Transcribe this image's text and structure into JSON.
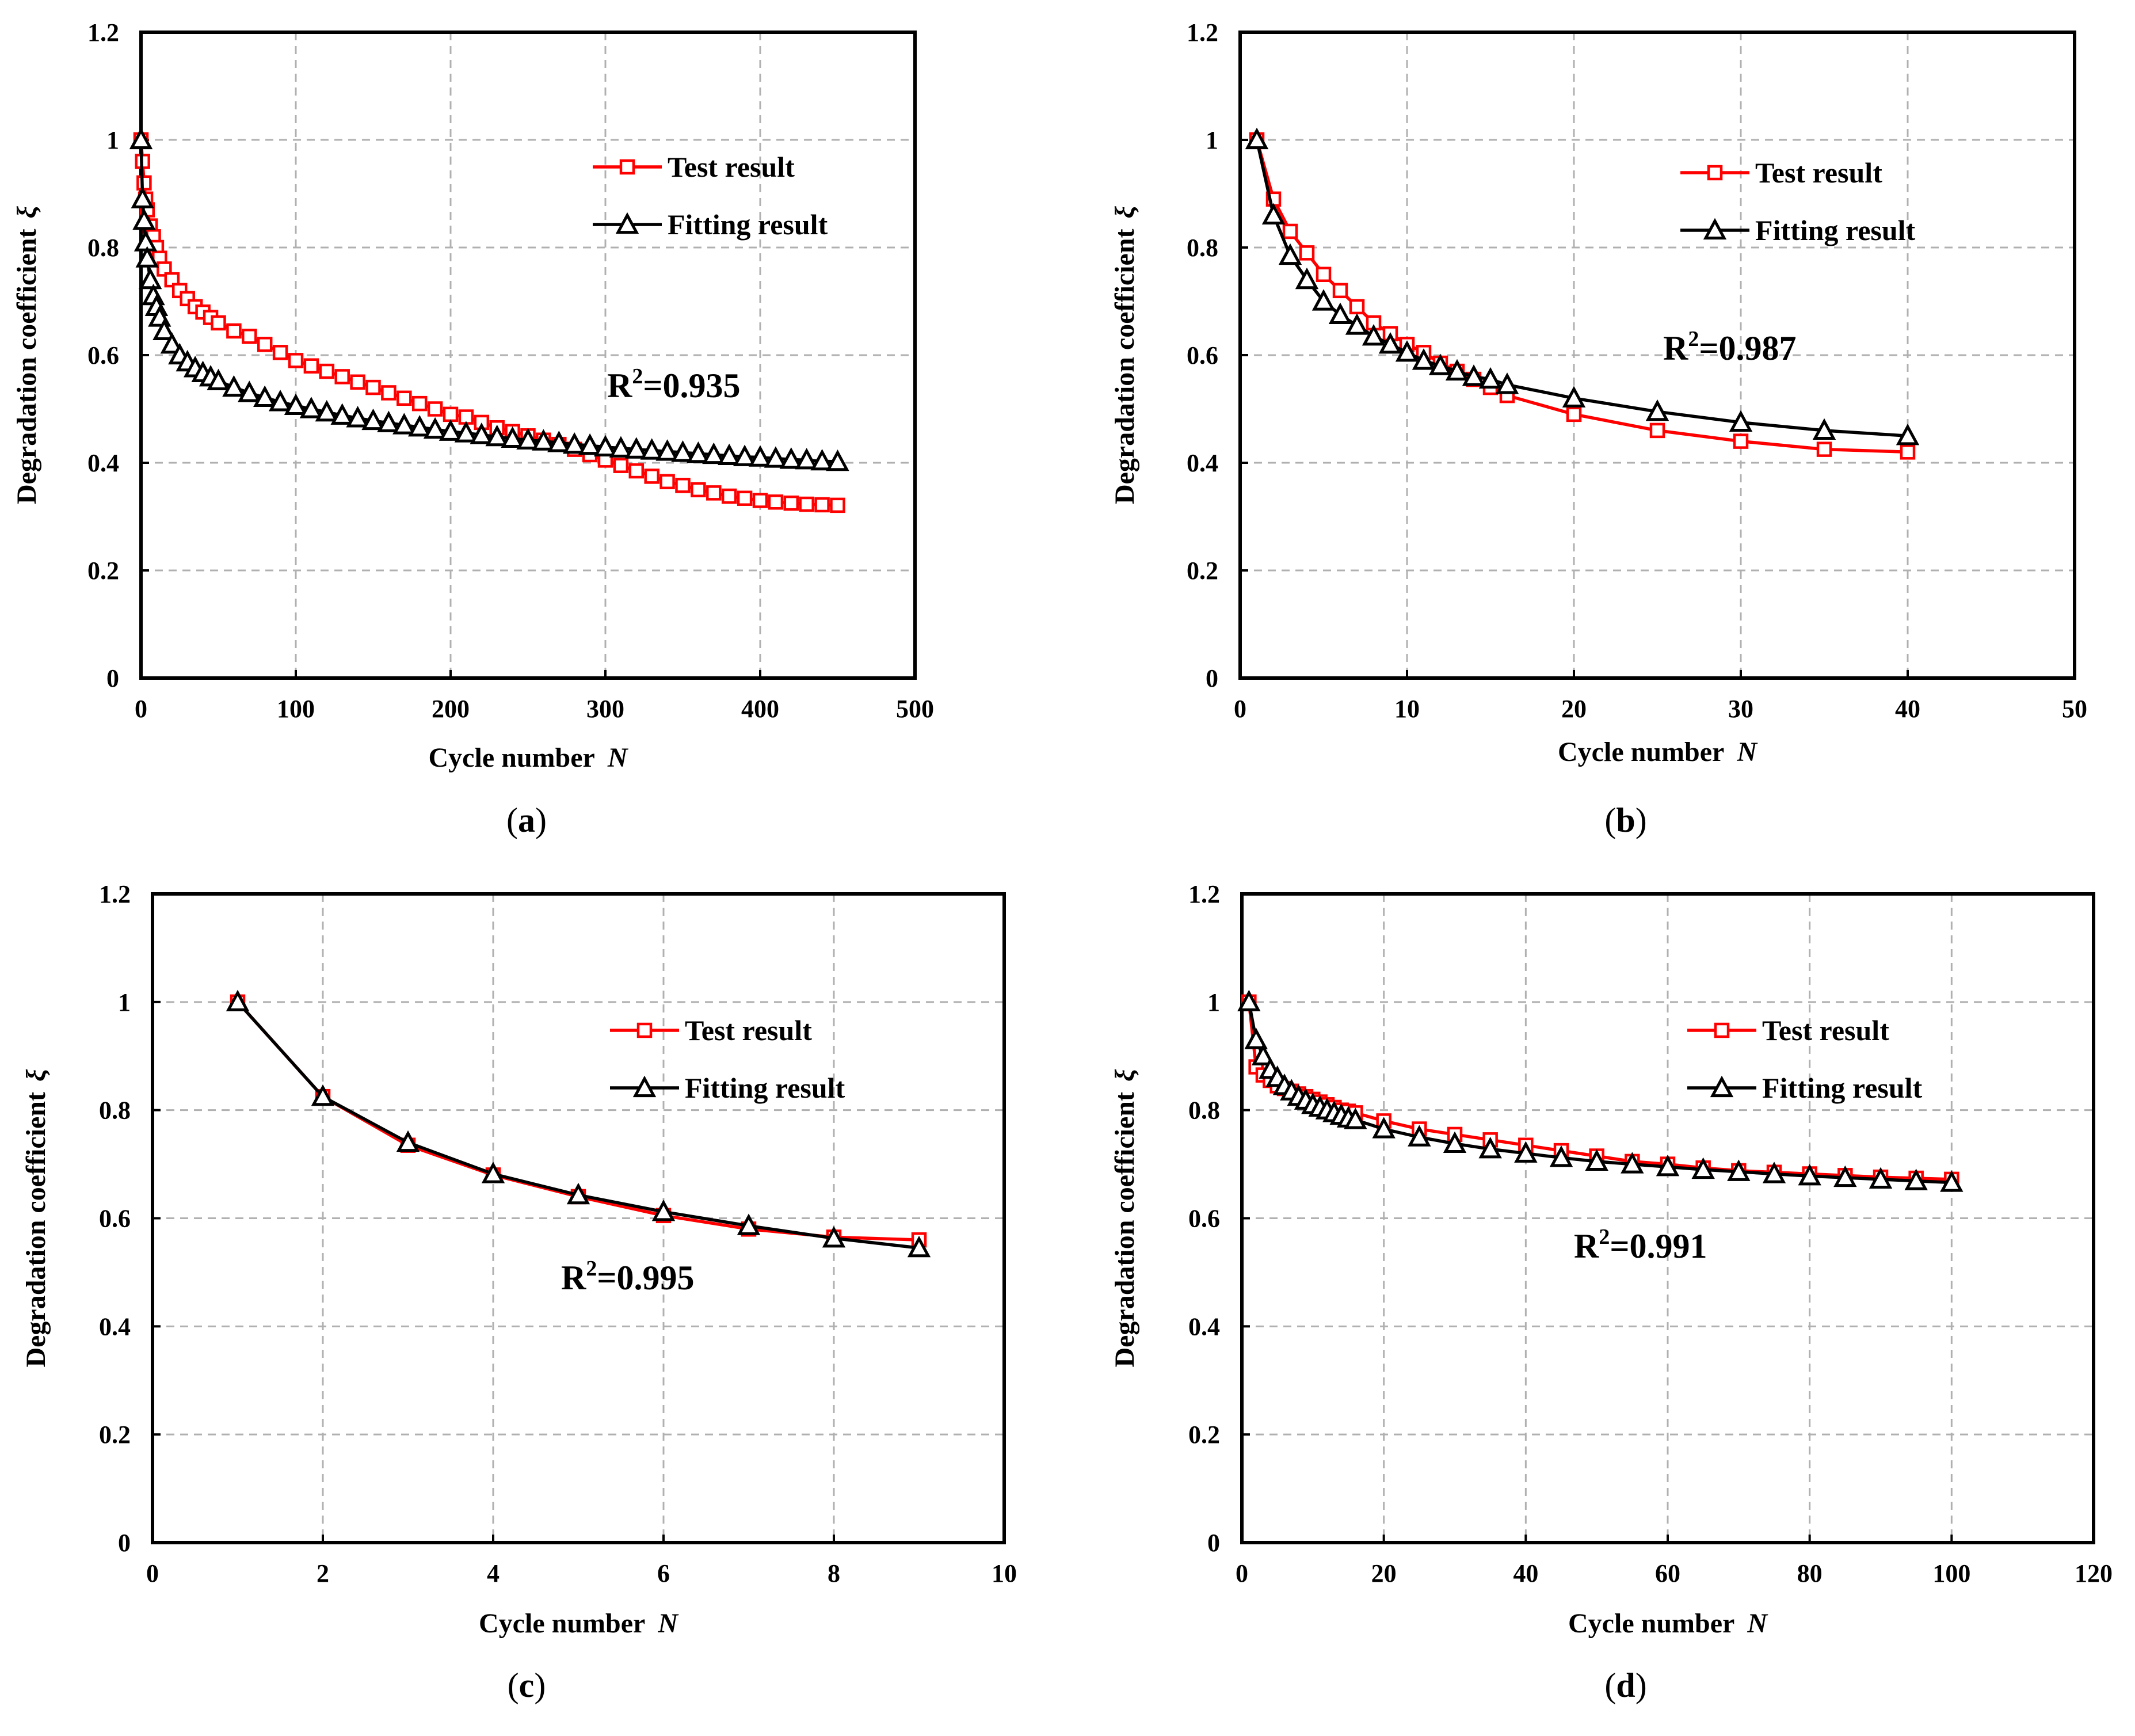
{
  "colors": {
    "test": "#ff0000",
    "fit": "#000000",
    "grid": "#b0b0b0"
  },
  "chart_data": [
    {
      "type": "line",
      "panel_label": "a",
      "xlabel": "Cycle number",
      "xvar": "N",
      "ylabel": "Degradation coefficient",
      "yvar": "ξ",
      "xlim": [
        0,
        500
      ],
      "ylim": [
        0,
        1.2
      ],
      "xticks": [
        "0",
        "100",
        "200",
        "300",
        "400",
        "500"
      ],
      "yticks": [
        "0",
        "0.2",
        "0.4",
        "0.6",
        "0.8",
        "1",
        "1.2"
      ],
      "grid": true,
      "legend": "top-right",
      "r2_label": "R",
      "r2_sup": "2",
      "r2_value": "=0.935",
      "series": [
        {
          "name": "Test result",
          "color": "#ff0000",
          "marker": "square",
          "x": [
            0,
            1,
            2,
            3,
            4,
            6,
            8,
            10,
            12,
            15,
            20,
            25,
            30,
            35,
            40,
            45,
            50,
            60,
            70,
            80,
            90,
            100,
            110,
            120,
            130,
            140,
            150,
            160,
            170,
            180,
            190,
            200,
            210,
            220,
            230,
            240,
            250,
            260,
            270,
            280,
            290,
            300,
            310,
            320,
            330,
            340,
            350,
            360,
            370,
            380,
            390,
            400,
            410,
            420,
            430,
            440,
            450
          ],
          "y": [
            1.0,
            0.96,
            0.92,
            0.89,
            0.87,
            0.84,
            0.82,
            0.8,
            0.78,
            0.76,
            0.74,
            0.72,
            0.705,
            0.69,
            0.68,
            0.67,
            0.66,
            0.645,
            0.635,
            0.62,
            0.605,
            0.59,
            0.58,
            0.57,
            0.56,
            0.55,
            0.54,
            0.53,
            0.52,
            0.51,
            0.5,
            0.49,
            0.485,
            0.475,
            0.465,
            0.458,
            0.45,
            0.442,
            0.434,
            0.425,
            0.415,
            0.405,
            0.395,
            0.385,
            0.375,
            0.365,
            0.358,
            0.35,
            0.344,
            0.338,
            0.334,
            0.33,
            0.327,
            0.325,
            0.323,
            0.322,
            0.321
          ]
        },
        {
          "name": "Fitting result",
          "color": "#000000",
          "marker": "triangle",
          "x": [
            0,
            1,
            2,
            3,
            4,
            6,
            8,
            10,
            12,
            15,
            20,
            25,
            30,
            35,
            40,
            45,
            50,
            60,
            70,
            80,
            90,
            100,
            110,
            120,
            130,
            140,
            150,
            160,
            170,
            180,
            190,
            200,
            210,
            220,
            230,
            240,
            250,
            260,
            270,
            280,
            290,
            300,
            310,
            320,
            330,
            340,
            350,
            360,
            370,
            380,
            390,
            400,
            410,
            420,
            430,
            440,
            450
          ],
          "y": [
            1.0,
            0.89,
            0.85,
            0.81,
            0.78,
            0.74,
            0.71,
            0.69,
            0.67,
            0.645,
            0.62,
            0.6,
            0.587,
            0.576,
            0.567,
            0.559,
            0.552,
            0.54,
            0.53,
            0.521,
            0.513,
            0.506,
            0.5,
            0.494,
            0.488,
            0.483,
            0.478,
            0.474,
            0.47,
            0.466,
            0.462,
            0.458,
            0.455,
            0.452,
            0.448,
            0.445,
            0.442,
            0.44,
            0.437,
            0.434,
            0.432,
            0.429,
            0.427,
            0.425,
            0.423,
            0.421,
            0.419,
            0.417,
            0.415,
            0.413,
            0.411,
            0.41,
            0.408,
            0.406,
            0.405,
            0.403,
            0.402
          ]
        }
      ]
    },
    {
      "type": "line",
      "panel_label": "b",
      "xlabel": "Cycle number",
      "xvar": "N",
      "ylabel": "Degradation coefficient",
      "yvar": "ξ",
      "xlim": [
        0,
        50
      ],
      "ylim": [
        0,
        1.2
      ],
      "xticks": [
        "0",
        "10",
        "20",
        "30",
        "40",
        "50"
      ],
      "yticks": [
        "0",
        "0.2",
        "0.4",
        "0.6",
        "0.8",
        "1",
        "1.2"
      ],
      "grid": true,
      "legend": "top-right",
      "r2_label": "R",
      "r2_sup": "2",
      "r2_value": "=0.987",
      "series": [
        {
          "name": "Test result",
          "color": "#ff0000",
          "marker": "square",
          "x": [
            1,
            2,
            3,
            4,
            5,
            6,
            7,
            8,
            9,
            10,
            11,
            12,
            13,
            14,
            15,
            16,
            20,
            25,
            30,
            35,
            40
          ],
          "y": [
            1.0,
            0.89,
            0.83,
            0.79,
            0.75,
            0.72,
            0.69,
            0.66,
            0.64,
            0.62,
            0.605,
            0.585,
            0.57,
            0.555,
            0.54,
            0.525,
            0.49,
            0.46,
            0.44,
            0.425,
            0.42
          ]
        },
        {
          "name": "Fitting result",
          "color": "#000000",
          "marker": "triangle",
          "x": [
            1,
            2,
            3,
            4,
            5,
            6,
            7,
            8,
            9,
            10,
            11,
            12,
            13,
            14,
            15,
            16,
            20,
            25,
            30,
            35,
            40
          ],
          "y": [
            1.0,
            0.86,
            0.785,
            0.74,
            0.7,
            0.675,
            0.655,
            0.635,
            0.62,
            0.605,
            0.59,
            0.58,
            0.57,
            0.56,
            0.555,
            0.545,
            0.52,
            0.495,
            0.475,
            0.46,
            0.45
          ]
        }
      ]
    },
    {
      "type": "line",
      "panel_label": "c",
      "xlabel": "Cycle number",
      "xvar": "N",
      "ylabel": "Degradation coefficient",
      "yvar": "ξ",
      "xlim": [
        0,
        10
      ],
      "ylim": [
        0,
        1.2
      ],
      "xticks": [
        "0",
        "2",
        "4",
        "6",
        "8",
        "10"
      ],
      "yticks": [
        "0",
        "0.2",
        "0.4",
        "0.6",
        "0.8",
        "1",
        "1.2"
      ],
      "grid": true,
      "legend": "top-right",
      "r2_label": "R",
      "r2_sup": "2",
      "r2_value": "=0.995",
      "series": [
        {
          "name": "Test result",
          "color": "#ff0000",
          "marker": "square",
          "x": [
            1,
            2,
            3,
            4,
            5,
            6,
            7,
            8,
            9
          ],
          "y": [
            1.0,
            0.825,
            0.735,
            0.68,
            0.64,
            0.605,
            0.58,
            0.565,
            0.56
          ]
        },
        {
          "name": "Fitting result",
          "color": "#000000",
          "marker": "triangle",
          "x": [
            1,
            2,
            3,
            4,
            5,
            6,
            7,
            8,
            9
          ],
          "y": [
            1.0,
            0.825,
            0.74,
            0.682,
            0.643,
            0.612,
            0.586,
            0.563,
            0.545
          ]
        }
      ]
    },
    {
      "type": "line",
      "panel_label": "d",
      "xlabel": "Cycle number",
      "xvar": "N",
      "ylabel": "Degradation coefficient",
      "yvar": "ξ",
      "xlim": [
        0,
        120
      ],
      "ylim": [
        0,
        1.2
      ],
      "xticks": [
        "0",
        "20",
        "40",
        "60",
        "80",
        "100",
        "120"
      ],
      "yticks": [
        "0",
        "0.2",
        "0.4",
        "0.6",
        "0.8",
        "1",
        "1.2"
      ],
      "grid": true,
      "legend": "top-right",
      "r2_label": "R",
      "r2_sup": "2",
      "r2_value": "=0.991",
      "series": [
        {
          "name": "Test result",
          "color": "#ff0000",
          "marker": "square",
          "x": [
            1,
            2,
            3,
            4,
            5,
            6,
            7,
            8,
            9,
            10,
            11,
            12,
            13,
            14,
            15,
            16,
            20,
            25,
            30,
            35,
            40,
            45,
            50,
            55,
            60,
            65,
            70,
            75,
            80,
            85,
            90,
            95,
            100
          ],
          "y": [
            1.0,
            0.88,
            0.865,
            0.855,
            0.845,
            0.84,
            0.835,
            0.83,
            0.825,
            0.82,
            0.815,
            0.81,
            0.805,
            0.8,
            0.798,
            0.795,
            0.78,
            0.765,
            0.755,
            0.745,
            0.735,
            0.725,
            0.715,
            0.705,
            0.7,
            0.693,
            0.688,
            0.685,
            0.682,
            0.679,
            0.676,
            0.674,
            0.672
          ]
        },
        {
          "name": "Fitting result",
          "color": "#000000",
          "marker": "triangle",
          "x": [
            1,
            2,
            3,
            4,
            5,
            6,
            7,
            8,
            9,
            10,
            11,
            12,
            13,
            14,
            15,
            16,
            20,
            25,
            30,
            35,
            40,
            45,
            50,
            55,
            60,
            65,
            70,
            75,
            80,
            85,
            90,
            95,
            100
          ],
          "y": [
            1.0,
            0.93,
            0.9,
            0.875,
            0.86,
            0.845,
            0.835,
            0.825,
            0.818,
            0.81,
            0.805,
            0.8,
            0.795,
            0.79,
            0.785,
            0.782,
            0.765,
            0.75,
            0.738,
            0.728,
            0.72,
            0.712,
            0.705,
            0.7,
            0.695,
            0.69,
            0.686,
            0.682,
            0.678,
            0.675,
            0.672,
            0.669,
            0.666
          ]
        }
      ]
    }
  ]
}
